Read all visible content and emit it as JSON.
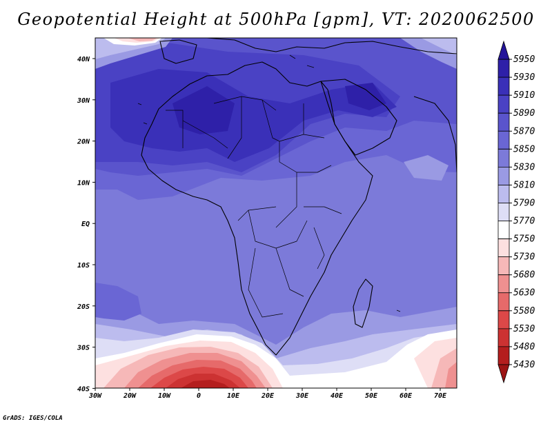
{
  "title": "Geopotential Height at 500hPa [gpm], VT: 2020062500",
  "credit": "GrADS: IGES/COLA",
  "lat_labels": [
    "40N",
    "30N",
    "20N",
    "10N",
    "EQ",
    "10S",
    "20S",
    "30S",
    "40S"
  ],
  "lon_labels": [
    "30W",
    "20W",
    "10W",
    "0",
    "10E",
    "20E",
    "30E",
    "40E",
    "50E",
    "60E",
    "70E"
  ],
  "colorbar": {
    "levels": [
      "5950",
      "5930",
      "5910",
      "5890",
      "5870",
      "5850",
      "5830",
      "5810",
      "5790",
      "5770",
      "5750",
      "5730",
      "5680",
      "5630",
      "5580",
      "5530",
      "5480",
      "5430"
    ],
    "colors": [
      "#24149a",
      "#2e20a8",
      "#3a30b8",
      "#4a42c4",
      "#5a54cc",
      "#6a66d4",
      "#7c7ad9",
      "#9a9ae3",
      "#bcbcee",
      "#dedef6",
      "#ffffff",
      "#fde0e0",
      "#f6b8b8",
      "#ef9090",
      "#e66a6a",
      "#dc4848",
      "#cc3232",
      "#b41e1e",
      "#9c1414"
    ]
  },
  "map": {
    "colors": {
      "c5930": "#2e20a8",
      "c5910": "#3a30b8",
      "c5890": "#4a42c4",
      "c5870": "#5a54cc",
      "c5850": "#6a66d4",
      "c5830": "#7c7ad9",
      "c5810": "#9a9ae3",
      "c5790": "#bcbcee",
      "c5770": "#dedef6",
      "c5750": "#ffffff",
      "c5730": "#fde0e0",
      "c5680": "#f6b8b8",
      "c5630": "#ef9090",
      "c5580": "#e66a6a",
      "c5530": "#dc4848",
      "c5480": "#cc3232",
      "c5430": "#b41e1e"
    }
  }
}
